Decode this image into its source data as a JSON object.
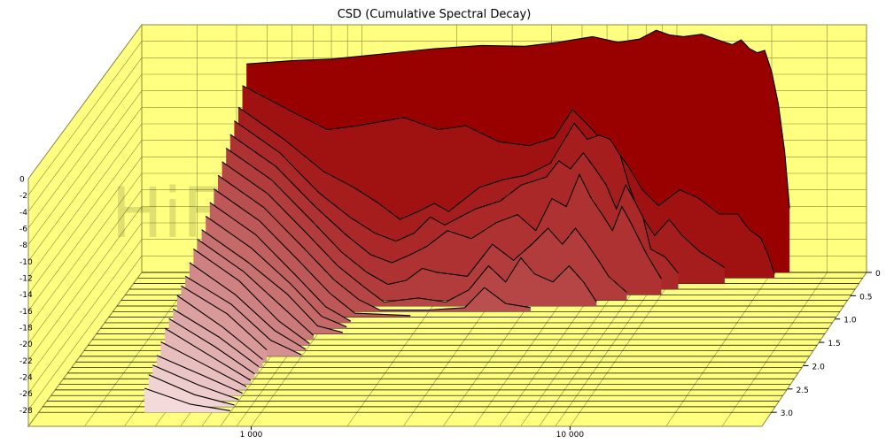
{
  "chart_data": {
    "type": "waterfall",
    "title": "CSD (Cumulative Spectral Decay)",
    "watermark": "HiFiCompass.com",
    "xscale": "log",
    "xlim": [
      200,
      40000
    ],
    "x_tick_labels": [
      {
        "value": 1000,
        "label": "1 000"
      },
      {
        "value": 10000,
        "label": "10 000"
      }
    ],
    "zlim": [
      -30,
      0
    ],
    "z_tick_labels": [
      "0",
      "-2",
      "-4",
      "-6",
      "-8",
      "-10",
      "-12",
      "-14",
      "-16",
      "-18",
      "-20",
      "-22",
      "-24",
      "-26",
      "-28"
    ],
    "z_ticks": [
      0,
      -2,
      -4,
      -6,
      -8,
      -10,
      -12,
      -14,
      -16,
      -18,
      -20,
      -22,
      -24,
      -26,
      -28
    ],
    "time_tick_labels": [
      "0",
      "0.5",
      "1.0",
      "1.5",
      "2.0",
      "2.5",
      "3.0"
    ],
    "time_ticks": [
      0,
      0.5,
      1.0,
      1.5,
      2.0,
      2.5,
      3.0
    ],
    "tlim": [
      0,
      3.3
    ],
    "grid": true,
    "colors": {
      "wall": "#ffff80",
      "grid": "#8a8a40",
      "first_slice": "#990000",
      "last_slice": "#f4dada"
    },
    "slices": [
      {
        "t": 0.0,
        "points": [
          [
            430,
            -4
          ],
          [
            600,
            -3.6
          ],
          [
            800,
            -3.4
          ],
          [
            1200,
            -2.7
          ],
          [
            1700,
            -2.1
          ],
          [
            2400,
            -1.7
          ],
          [
            3300,
            -1.8
          ],
          [
            4200,
            -1.3
          ],
          [
            5400,
            -0.6
          ],
          [
            6500,
            -1.3
          ],
          [
            7600,
            -0.9
          ],
          [
            8600,
            0.2
          ],
          [
            9500,
            -0.4
          ],
          [
            10500,
            -0.6
          ],
          [
            12000,
            -0.3
          ],
          [
            13500,
            -1.0
          ],
          [
            15000,
            -1.6
          ],
          [
            16000,
            -1.0
          ],
          [
            17000,
            -2.1
          ],
          [
            18000,
            -2.6
          ],
          [
            19000,
            -2.3
          ],
          [
            20000,
            -5
          ],
          [
            21000,
            -9
          ],
          [
            22000,
            -15
          ],
          [
            22800,
            -22
          ]
        ]
      },
      {
        "t": 0.12,
        "points": [
          [
            430,
            -6
          ],
          [
            600,
            -9
          ],
          [
            800,
            -11.5
          ],
          [
            1000,
            -11
          ],
          [
            1400,
            -10
          ],
          [
            1800,
            -11.5
          ],
          [
            2200,
            -11
          ],
          [
            2800,
            -13
          ],
          [
            3500,
            -13.5
          ],
          [
            4200,
            -12.5
          ],
          [
            4800,
            -9
          ],
          [
            5400,
            -11
          ],
          [
            6000,
            -13
          ],
          [
            6600,
            -14
          ],
          [
            7200,
            -16
          ],
          [
            8000,
            -19
          ],
          [
            9000,
            -21
          ],
          [
            10500,
            -19
          ],
          [
            12000,
            -20
          ],
          [
            14000,
            -22
          ],
          [
            16000,
            -22
          ],
          [
            17500,
            -24
          ],
          [
            19000,
            -25
          ],
          [
            20000,
            -27
          ],
          [
            21000,
            -29.5
          ]
        ]
      },
      {
        "t": 0.24,
        "points": [
          [
            430,
            -8
          ],
          [
            600,
            -12
          ],
          [
            800,
            -16
          ],
          [
            1000,
            -18
          ],
          [
            1200,
            -20
          ],
          [
            1400,
            -22
          ],
          [
            1600,
            -21
          ],
          [
            1800,
            -20
          ],
          [
            2000,
            -21
          ],
          [
            2500,
            -18
          ],
          [
            3000,
            -17
          ],
          [
            3500,
            -16.5
          ],
          [
            4200,
            -15
          ],
          [
            5000,
            -10
          ],
          [
            5500,
            -12
          ],
          [
            6000,
            -11.5
          ],
          [
            6500,
            -12
          ],
          [
            7000,
            -14
          ],
          [
            7500,
            -18
          ],
          [
            8000,
            -21
          ],
          [
            9000,
            -24
          ],
          [
            10000,
            -22
          ],
          [
            11000,
            -24
          ],
          [
            12500,
            -26
          ],
          [
            15000,
            -28
          ]
        ]
      },
      {
        "t": 0.36,
        "points": [
          [
            430,
            -9
          ],
          [
            600,
            -13
          ],
          [
            800,
            -18
          ],
          [
            1000,
            -21
          ],
          [
            1200,
            -23
          ],
          [
            1400,
            -24
          ],
          [
            1600,
            -23
          ],
          [
            1800,
            -21
          ],
          [
            2000,
            -22
          ],
          [
            2500,
            -20
          ],
          [
            3000,
            -19
          ],
          [
            3500,
            -17
          ],
          [
            4200,
            -16
          ],
          [
            4600,
            -14
          ],
          [
            5000,
            -15
          ],
          [
            5500,
            -13
          ],
          [
            6000,
            -15
          ],
          [
            6500,
            -17
          ],
          [
            7000,
            -20
          ],
          [
            7500,
            -17
          ],
          [
            8000,
            -19
          ],
          [
            8500,
            -21
          ],
          [
            9000,
            -25
          ],
          [
            10000,
            -26
          ],
          [
            11000,
            -28
          ]
        ]
      },
      {
        "t": 0.48,
        "points": [
          [
            430,
            -10
          ],
          [
            600,
            -14
          ],
          [
            800,
            -19
          ],
          [
            1000,
            -22.5
          ],
          [
            1200,
            -25
          ],
          [
            1400,
            -26
          ],
          [
            1600,
            -25
          ],
          [
            1800,
            -24
          ],
          [
            2100,
            -22
          ],
          [
            2500,
            -23
          ],
          [
            3000,
            -21
          ],
          [
            3500,
            -20
          ],
          [
            4000,
            -22
          ],
          [
            4500,
            -18
          ],
          [
            5000,
            -19
          ],
          [
            5500,
            -15
          ],
          [
            6000,
            -18
          ],
          [
            6500,
            -20
          ],
          [
            7000,
            -22
          ],
          [
            7500,
            -19
          ],
          [
            8000,
            -21
          ],
          [
            9000,
            -25
          ],
          [
            10000,
            -28
          ]
        ]
      },
      {
        "t": 0.6,
        "points": [
          [
            430,
            -11
          ],
          [
            600,
            -15
          ],
          [
            800,
            -20
          ],
          [
            1000,
            -24
          ],
          [
            1200,
            -26.5
          ],
          [
            1400,
            -28
          ],
          [
            1600,
            -27.5
          ],
          [
            1800,
            -26
          ],
          [
            2000,
            -26.5
          ],
          [
            2500,
            -27
          ],
          [
            3000,
            -23
          ],
          [
            3500,
            -25
          ],
          [
            4000,
            -23
          ],
          [
            4500,
            -21
          ],
          [
            5000,
            -23
          ],
          [
            5500,
            -21
          ],
          [
            6000,
            -23
          ],
          [
            6500,
            -25
          ],
          [
            7000,
            -27
          ],
          [
            8000,
            -29
          ]
        ]
      },
      {
        "t": 0.72,
        "points": [
          [
            430,
            -12
          ],
          [
            600,
            -16
          ],
          [
            800,
            -21
          ],
          [
            1000,
            -25
          ],
          [
            1200,
            -27.5
          ],
          [
            1400,
            -29.5
          ],
          [
            1800,
            -29
          ],
          [
            2200,
            -29.5
          ],
          [
            2600,
            -28
          ],
          [
            3000,
            -25
          ],
          [
            3400,
            -27
          ],
          [
            3800,
            -24
          ],
          [
            4200,
            -26
          ],
          [
            4800,
            -27
          ],
          [
            5400,
            -25
          ],
          [
            6000,
            -27
          ],
          [
            6600,
            -29.5
          ]
        ]
      },
      {
        "t": 0.84,
        "points": [
          [
            430,
            -13
          ],
          [
            600,
            -17
          ],
          [
            800,
            -22
          ],
          [
            1000,
            -26
          ],
          [
            1200,
            -28.5
          ],
          [
            1400,
            -29.8
          ],
          [
            2000,
            -29.8
          ],
          [
            2600,
            -29.5
          ],
          [
            3000,
            -27
          ],
          [
            3500,
            -29
          ],
          [
            4200,
            -29.5
          ]
        ]
      },
      {
        "t": 0.96,
        "points": [
          [
            430,
            -14
          ],
          [
            600,
            -18
          ],
          [
            800,
            -23
          ],
          [
            1000,
            -27
          ],
          [
            1200,
            -29.5
          ],
          [
            1800,
            -29.8
          ]
        ]
      },
      {
        "t": 1.08,
        "points": [
          [
            430,
            -15
          ],
          [
            600,
            -19
          ],
          [
            800,
            -24
          ],
          [
            1000,
            -28
          ],
          [
            1200,
            -29.8
          ]
        ]
      },
      {
        "t": 1.2,
        "points": [
          [
            430,
            -16
          ],
          [
            600,
            -20
          ],
          [
            800,
            -24.5
          ],
          [
            1000,
            -28.5
          ],
          [
            1200,
            -29.8
          ]
        ]
      },
      {
        "t": 1.32,
        "points": [
          [
            430,
            -17
          ],
          [
            600,
            -21
          ],
          [
            800,
            -25
          ],
          [
            1000,
            -29
          ],
          [
            1200,
            -29.8
          ]
        ]
      },
      {
        "t": 1.44,
        "points": [
          [
            430,
            -17.5
          ],
          [
            600,
            -21.5
          ],
          [
            800,
            -26
          ],
          [
            1000,
            -29.5
          ]
        ]
      },
      {
        "t": 1.56,
        "points": [
          [
            430,
            -18
          ],
          [
            600,
            -22
          ],
          [
            800,
            -27
          ],
          [
            1000,
            -29.8
          ]
        ]
      },
      {
        "t": 1.68,
        "points": [
          [
            430,
            -19
          ],
          [
            600,
            -23
          ],
          [
            800,
            -27.5
          ],
          [
            1000,
            -29.8
          ]
        ]
      },
      {
        "t": 1.8,
        "points": [
          [
            430,
            -20
          ],
          [
            600,
            -23.5
          ],
          [
            800,
            -28
          ],
          [
            1000,
            -29.8
          ]
        ]
      },
      {
        "t": 1.92,
        "points": [
          [
            430,
            -20.5
          ],
          [
            600,
            -24
          ],
          [
            800,
            -28.5
          ]
        ]
      },
      {
        "t": 2.04,
        "points": [
          [
            430,
            -21
          ],
          [
            600,
            -25
          ],
          [
            800,
            -29
          ]
        ]
      },
      {
        "t": 2.16,
        "points": [
          [
            430,
            -22
          ],
          [
            600,
            -25.5
          ],
          [
            800,
            -29.2
          ]
        ]
      },
      {
        "t": 2.28,
        "points": [
          [
            430,
            -22.5
          ],
          [
            600,
            -26
          ],
          [
            800,
            -29.4
          ]
        ]
      },
      {
        "t": 2.4,
        "points": [
          [
            430,
            -23
          ],
          [
            600,
            -26.5
          ],
          [
            800,
            -29.5
          ]
        ]
      },
      {
        "t": 2.52,
        "points": [
          [
            430,
            -24
          ],
          [
            600,
            -27
          ],
          [
            800,
            -29.6
          ]
        ]
      },
      {
        "t": 2.64,
        "points": [
          [
            430,
            -25
          ],
          [
            600,
            -27.5
          ],
          [
            800,
            -29.7
          ]
        ]
      },
      {
        "t": 2.76,
        "points": [
          [
            430,
            -25.5
          ],
          [
            600,
            -28
          ],
          [
            800,
            -29.8
          ]
        ]
      },
      {
        "t": 2.88,
        "points": [
          [
            430,
            -26
          ],
          [
            600,
            -28.5
          ],
          [
            800,
            -29.8
          ]
        ]
      },
      {
        "t": 3.0,
        "points": [
          [
            430,
            -27
          ],
          [
            600,
            -29
          ],
          [
            800,
            -29.8
          ]
        ]
      }
    ]
  }
}
